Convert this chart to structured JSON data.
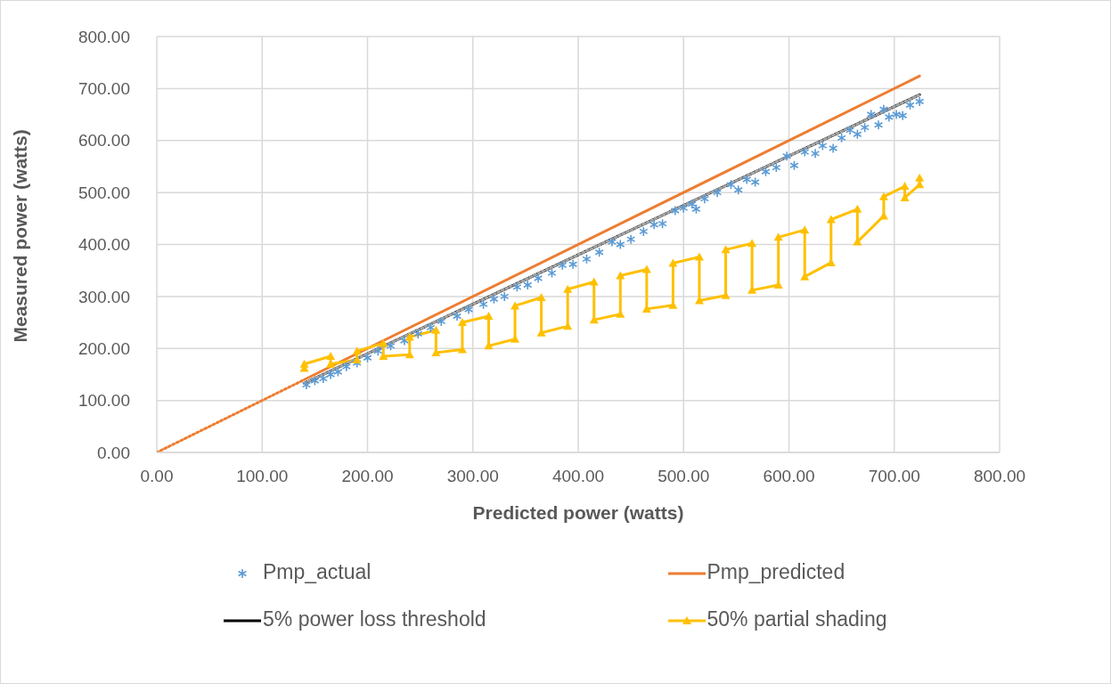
{
  "chart_data": {
    "type": "scatter",
    "xlabel": "Predicted power (watts)",
    "ylabel": "Measured power (watts)",
    "xlim": [
      0,
      800
    ],
    "ylim": [
      0,
      800
    ],
    "xticks": [
      {
        "value": 0,
        "label": "0.00"
      },
      {
        "value": 100,
        "label": "100.00"
      },
      {
        "value": 200,
        "label": "200.00"
      },
      {
        "value": 300,
        "label": "300.00"
      },
      {
        "value": 400,
        "label": "400.00"
      },
      {
        "value": 500,
        "label": "500.00"
      },
      {
        "value": 600,
        "label": "600.00"
      },
      {
        "value": 700,
        "label": "700.00"
      },
      {
        "value": 800,
        "label": "800.00"
      }
    ],
    "yticks": [
      {
        "value": 0,
        "label": "0.00"
      },
      {
        "value": 100,
        "label": "100.00"
      },
      {
        "value": 200,
        "label": "200.00"
      },
      {
        "value": 300,
        "label": "300.00"
      },
      {
        "value": 400,
        "label": "400.00"
      },
      {
        "value": 500,
        "label": "500.00"
      },
      {
        "value": 600,
        "label": "600.00"
      },
      {
        "value": 700,
        "label": "700.00"
      },
      {
        "value": 800,
        "label": "800.00"
      }
    ],
    "grid": true,
    "legend": "bottom",
    "series": [
      {
        "name": "Pmp_actual",
        "marker": "cross",
        "color": "#5b9bd5",
        "x": [
          142,
          150,
          158,
          165,
          172,
          180,
          190,
          200,
          210,
          222,
          235,
          248,
          260,
          270,
          285,
          296,
          310,
          320,
          330,
          342,
          352,
          362,
          375,
          385,
          395,
          408,
          420,
          432,
          440,
          450,
          462,
          472,
          480,
          492,
          500,
          508,
          512,
          520,
          532,
          545,
          552,
          560,
          568,
          578,
          588,
          598,
          605,
          615,
          625,
          632,
          642,
          650,
          658,
          665,
          672,
          678,
          685,
          690,
          695,
          702,
          708,
          715,
          724
        ],
        "values": [
          130,
          138,
          142,
          150,
          155,
          165,
          172,
          182,
          195,
          205,
          215,
          228,
          240,
          252,
          262,
          275,
          285,
          295,
          300,
          318,
          322,
          335,
          345,
          360,
          362,
          372,
          385,
          405,
          400,
          410,
          425,
          438,
          440,
          465,
          470,
          478,
          468,
          488,
          500,
          515,
          505,
          525,
          520,
          540,
          548,
          570,
          552,
          578,
          575,
          590,
          585,
          605,
          620,
          612,
          625,
          650,
          630,
          660,
          645,
          650,
          648,
          668,
          675
        ]
      },
      {
        "name": "Pmp_predicted",
        "type": "line",
        "marker": "none",
        "line_style": "solid",
        "color": "#ed7d31",
        "x": [
          140,
          724
        ],
        "values": [
          140,
          724
        ]
      },
      {
        "name": "5% power loss threshold",
        "type": "line",
        "marker": "none",
        "line_style": "solid",
        "color": "#000000",
        "x": [
          140,
          724
        ],
        "values": [
          133,
          688
        ]
      },
      {
        "name": "50% partial shading",
        "type": "line",
        "marker": "triangle",
        "color": "#ffc000",
        "x": [
          140,
          140,
          165,
          165,
          190,
          190,
          215,
          215,
          240,
          240,
          265,
          265,
          290,
          290,
          315,
          315,
          340,
          340,
          365,
          365,
          390,
          390,
          415,
          415,
          440,
          440,
          465,
          465,
          490,
          490,
          515,
          515,
          540,
          540,
          565,
          565,
          590,
          590,
          615,
          615,
          640,
          640,
          665,
          665,
          690,
          690,
          710,
          710,
          724,
          724
        ],
        "values": [
          162,
          170,
          185,
          170,
          178,
          195,
          210,
          185,
          188,
          222,
          235,
          192,
          198,
          250,
          262,
          205,
          218,
          282,
          298,
          230,
          243,
          314,
          328,
          255,
          266,
          340,
          352,
          276,
          283,
          364,
          376,
          292,
          302,
          390,
          402,
          312,
          322,
          414,
          428,
          338,
          365,
          448,
          468,
          405,
          455,
          492,
          512,
          490,
          515,
          528
        ]
      },
      {
        "type": "line",
        "marker": "none",
        "line_style": "dotted",
        "color": "#ed7d31",
        "x": [
          0,
          140
        ],
        "values": [
          0,
          140
        ]
      },
      {
        "type": "line",
        "marker": "none",
        "line_style": "dotted",
        "color": "#a5a5a5",
        "x": [
          140,
          724
        ],
        "values": [
          133,
          688
        ]
      }
    ]
  }
}
